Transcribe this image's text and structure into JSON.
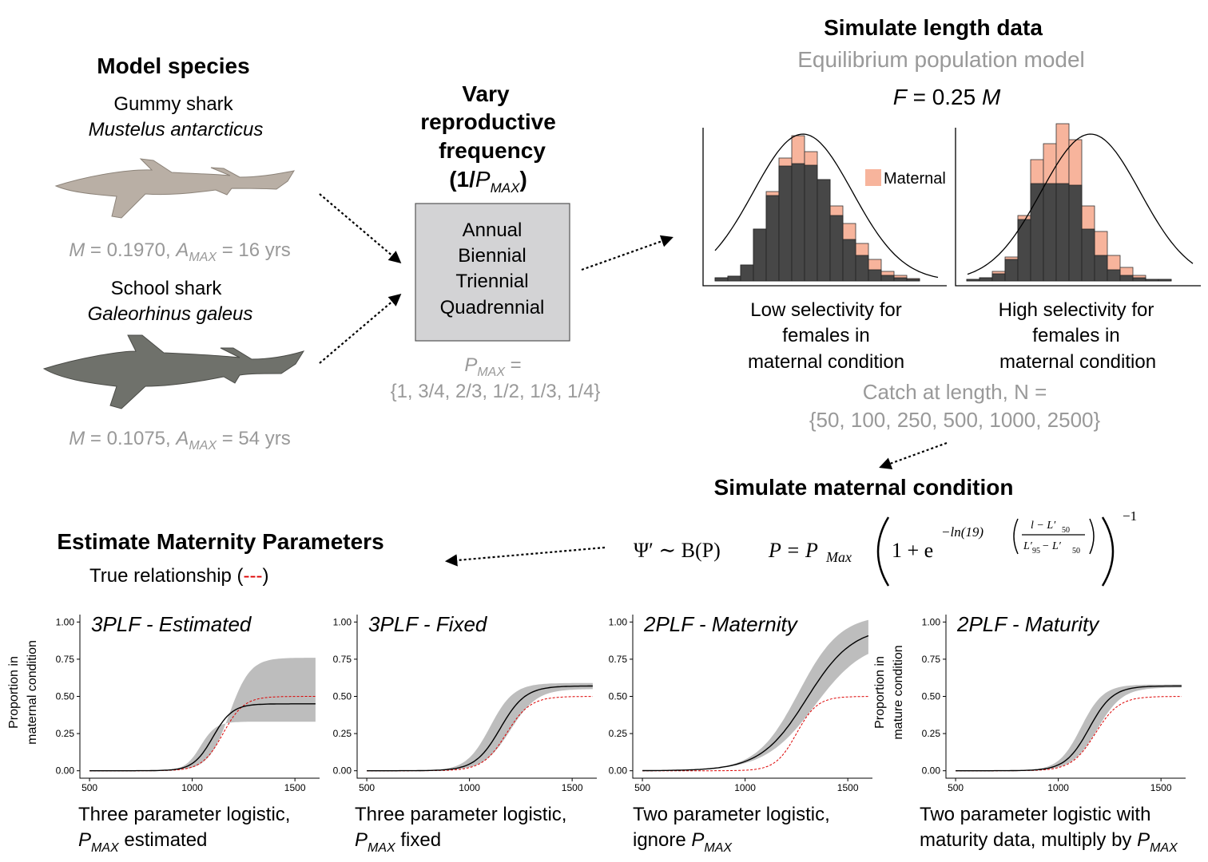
{
  "model_species": {
    "title": "Model species",
    "species": [
      {
        "common": "Gummy shark",
        "latin": "Mustelus antarcticus",
        "stats": [
          "M",
          " = 0.1970, ",
          "A",
          "MAX",
          " = 16 yrs"
        ]
      },
      {
        "common": "School shark",
        "latin": "Galeorhinus galeus",
        "stats": [
          "M",
          " = 0.1075, ",
          "A",
          "MAX",
          " = 54 yrs"
        ]
      }
    ]
  },
  "reproductive": {
    "title": [
      "Vary",
      "reproductive",
      "frequency",
      "(1/",
      "P",
      "MAX",
      ")"
    ],
    "options": [
      "Annual",
      "Biennial",
      "Triennial",
      "Quadrennial"
    ],
    "pmax": [
      "P",
      "MAX",
      " =",
      "{1, 3/4, 2/3, 1/2, 1/3, 1/4}"
    ]
  },
  "simulate_length": {
    "title": "Simulate length data",
    "subtitle": "Equilibrium  population model",
    "f": [
      "F",
      " = 0.25 ",
      "M"
    ],
    "legend": "Maternal",
    "panels": [
      [
        "Low selectivity for",
        "females in",
        "maternal condition"
      ],
      [
        "High selectivity for",
        "females in",
        "maternal condition"
      ]
    ],
    "catch": [
      "Catch at length, N =",
      "{50, 100, 250, 500, 1000, 2500}"
    ]
  },
  "maternal": {
    "title": "Simulate maternal condition",
    "formula": [
      "Ψ′ ∼ B(P)",
      "P = P",
      "Max",
      "1 + e",
      "−ln(19)",
      "l − L′",
      "50",
      "L′",
      "95",
      " − L′",
      "50",
      "−1"
    ]
  },
  "estimate": {
    "title": "Estimate Maternity Parameters",
    "true_relationship": [
      "True relationship (",
      "---",
      ")"
    ]
  },
  "plots": [
    {
      "title": "3PLF - Estimated",
      "ylabel": [
        "Proportion in",
        "maternal condition"
      ],
      "caption": [
        "Three parameter logistic,",
        "P",
        "MAX",
        " estimated"
      ]
    },
    {
      "title": "3PLF - Fixed",
      "caption": [
        "Three parameter logistic,",
        "P",
        "MAX",
        " fixed"
      ]
    },
    {
      "title": "2PLF - Maternity",
      "caption": [
        "Two parameter logistic,",
        "ignore ",
        "P",
        "MAX"
      ]
    },
    {
      "title": "2PLF - Maturity",
      "ylabel": [
        "Proportion in",
        "mature condition"
      ],
      "caption": [
        "Two parameter logistic with",
        "maturity data, multiply by ",
        "P",
        "MAX"
      ]
    }
  ],
  "xlim": [
    453,
    1620
  ],
  "xticks": [
    500,
    1000,
    1500
  ],
  "ylim": [
    -0.05,
    1.05
  ],
  "yticks": [
    {
      "value": 0,
      "label": "0.00"
    },
    {
      "value": 0.25,
      "label": "0.25"
    },
    {
      "value": 0.5,
      "label": "0.50"
    },
    {
      "value": 0.75,
      "label": "0.75"
    },
    {
      "value": 1,
      "label": "1.00"
    }
  ]
}
